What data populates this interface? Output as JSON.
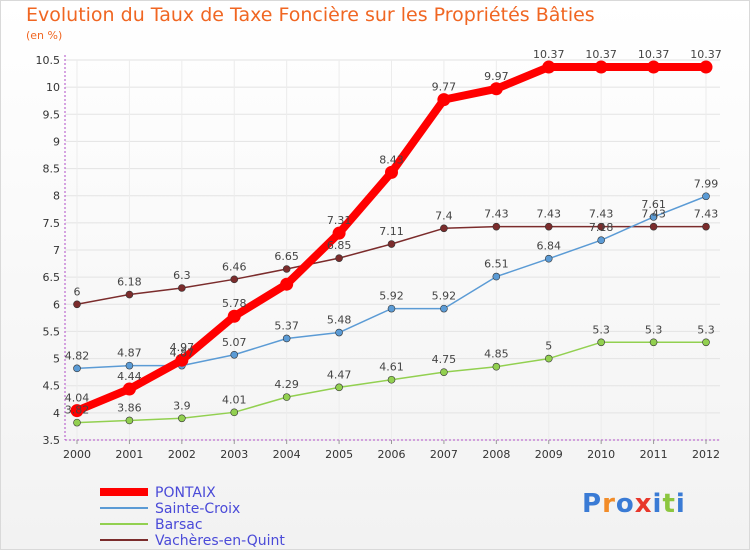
{
  "title": "Evolution du Taux de Taxe Foncière sur les Propriétés Bâties",
  "subtitle": "(en %)",
  "logo": {
    "text": "Proxiti",
    "colors": [
      "#3a7bd5",
      "#f28c28",
      "#3a7bd5",
      "#e8372b",
      "#3a7bd5",
      "#8cc63f",
      "#3a7bd5"
    ]
  },
  "chart_data": {
    "type": "line",
    "title": "Evolution du Taux de Taxe Foncière sur les Propriétés Bâties",
    "ylabel": "(en %)",
    "xlabel": "",
    "x": [
      "2000",
      "2001",
      "2002",
      "2003",
      "2004",
      "2005",
      "2006",
      "2007",
      "2008",
      "2009",
      "2010",
      "2011",
      "2012"
    ],
    "ylim": [
      3.5,
      10.5
    ],
    "yticks": [
      "3.5",
      "4",
      "4.5",
      "5",
      "5.5",
      "6",
      "6.5",
      "7",
      "7.5",
      "8",
      "8.5",
      "9",
      "9.5",
      "10",
      "10.5"
    ],
    "legend_position": "bottom-left",
    "series": [
      {
        "name": "PONTAIX",
        "color": "#ff0000",
        "values": [
          4.04,
          4.44,
          4.97,
          5.78,
          6.37,
          7.31,
          8.43,
          9.77,
          9.97,
          10.37,
          10.37,
          10.37,
          10.37
        ],
        "labels": [
          "4.04",
          "4.44",
          "4.97",
          "5.78",
          "",
          "7.31",
          "8.43",
          "9.77",
          "9.97",
          "10.37",
          "10.37",
          "10.37",
          "10.37"
        ]
      },
      {
        "name": "Sainte-Croix",
        "color": "#5b9bd5",
        "values": [
          4.82,
          4.87,
          4.87,
          5.07,
          5.37,
          5.48,
          5.92,
          5.92,
          6.51,
          6.84,
          7.18,
          7.61,
          7.99
        ],
        "labels": [
          "4.82",
          "4.87",
          "4.87",
          "5.07",
          "5.37",
          "5.48",
          "5.92",
          "5.92",
          "6.51",
          "6.84",
          "7.18",
          "7.61",
          "7.99"
        ]
      },
      {
        "name": "Barsac",
        "color": "#92d050",
        "values": [
          3.82,
          3.86,
          3.9,
          4.01,
          4.29,
          4.47,
          4.61,
          4.75,
          4.85,
          5,
          5.3,
          5.3,
          5.3
        ],
        "labels": [
          "3.82",
          "3.86",
          "3.9",
          "4.01",
          "4.29",
          "4.47",
          "4.61",
          "4.75",
          "4.85",
          "5",
          "5.3",
          "5.3",
          "5.3"
        ]
      },
      {
        "name": "Vachères-en-Quint",
        "color": "#7b2c2c",
        "values": [
          6,
          6.18,
          6.3,
          6.46,
          6.65,
          6.85,
          7.11,
          7.4,
          7.43,
          7.43,
          7.43,
          7.43,
          7.43
        ],
        "labels": [
          "6",
          "6.18",
          "6.3",
          "6.46",
          "6.65",
          "6.85",
          "7.11",
          "7.4",
          "7.43",
          "7.43",
          "7.43",
          "7.43",
          "7.43"
        ]
      }
    ]
  }
}
